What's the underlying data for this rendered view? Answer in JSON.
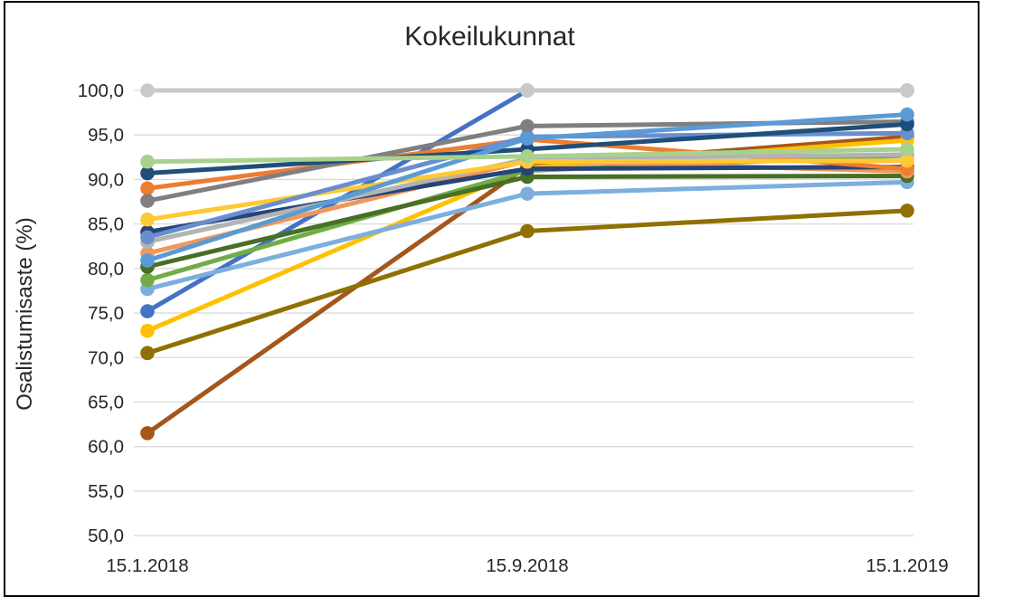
{
  "chart": {
    "title": "Kokeilukunnat",
    "y_axis_title": "Osalistumisaste (%)"
  },
  "chart_data": {
    "type": "line",
    "title": "Kokeilukunnat",
    "xlabel": "",
    "ylabel": "Osalistumisaste (%)",
    "categories": [
      "15.1.2018",
      "15.9.2018",
      "15.1.2019"
    ],
    "ylim": [
      50,
      100
    ],
    "ytick_step": 5,
    "ytick_labels": [
      "50,0",
      "55,0",
      "60,0",
      "65,0",
      "70,0",
      "75,0",
      "80,0",
      "85,0",
      "90,0",
      "95,0",
      "100,0"
    ],
    "grid": "horizontal-only",
    "legend": "none",
    "marker": "circle",
    "series": [
      {
        "id": "blue",
        "color": "#4472C4",
        "values": [
          75.2,
          100.0,
          100.0
        ]
      },
      {
        "id": "brown",
        "color": "#A4561B",
        "values": [
          61.5,
          91.5,
          94.8
        ]
      },
      {
        "id": "gold",
        "color": "#FFC000",
        "values": [
          73.0,
          91.3,
          94.4
        ]
      },
      {
        "id": "olive",
        "color": "#8F7000",
        "values": [
          70.5,
          84.2,
          86.5
        ]
      },
      {
        "id": "sky-blue",
        "color": "#7CAFDD",
        "values": [
          77.7,
          88.4,
          89.7
        ]
      },
      {
        "id": "green",
        "color": "#70AD47",
        "values": [
          78.7,
          91.0,
          92.7
        ]
      },
      {
        "id": "dark-green",
        "color": "#476F25",
        "values": [
          80.2,
          90.3,
          90.4
        ]
      },
      {
        "id": "salmon",
        "color": "#F1975A",
        "values": [
          81.7,
          92.1,
          90.9
        ]
      },
      {
        "id": "navy-2",
        "color": "#264478",
        "values": [
          84.1,
          91.2,
          91.4
        ]
      },
      {
        "id": "orange",
        "color": "#ED7D31",
        "values": [
          89.0,
          94.5,
          91.2
        ]
      },
      {
        "id": "light-gray",
        "color": "#B3B3B3",
        "values": [
          83.0,
          92.3,
          92.8
        ]
      },
      {
        "id": "yellow",
        "color": "#FFC933",
        "values": [
          85.5,
          92.0,
          92.1
        ]
      },
      {
        "id": "medium-blue",
        "color": "#698ED0",
        "values": [
          83.5,
          94.8,
          95.2
        ]
      },
      {
        "id": "gray",
        "color": "#7F7F7F",
        "values": [
          87.6,
          96.0,
          96.5
        ]
      },
      {
        "id": "navy",
        "color": "#1F4E79",
        "values": [
          90.7,
          93.4,
          96.2
        ]
      },
      {
        "id": "light-blue",
        "color": "#5B9BD5",
        "values": [
          80.9,
          94.6,
          97.3
        ]
      },
      {
        "id": "light-green",
        "color": "#A9D18E",
        "values": [
          92.0,
          92.6,
          93.4
        ]
      },
      {
        "id": "silver",
        "color": "#C9C9C9",
        "values": [
          100.0,
          100.0,
          100.0
        ]
      }
    ]
  }
}
